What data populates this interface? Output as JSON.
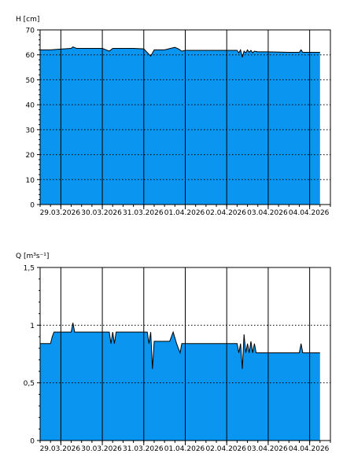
{
  "chart_data": [
    {
      "type": "area",
      "ylabel": "H [cm]",
      "ylim": [
        0,
        70
      ],
      "yticks": [
        0,
        10,
        20,
        30,
        40,
        50,
        60,
        70
      ],
      "ytick_labels": [
        "0",
        "10",
        "20",
        "30",
        "40",
        "50",
        "60",
        "70"
      ],
      "xlim": [
        "2026-03-28T12:00",
        "2026-04-04T12:00"
      ],
      "x_day_lines": [
        "2026-03-29",
        "2026-03-30",
        "2026-03-31",
        "2026-04-01",
        "2026-04-02",
        "2026-04-03",
        "2026-04-04"
      ],
      "xtick_labels": [
        "29.03.2026",
        "30.03.2026",
        "31.03.2026",
        "01.04.2026",
        "02.04.2026",
        "03.04.2026",
        "04.04.2026"
      ],
      "grid": "horizontal dotted",
      "fill_color": "#0a96f0",
      "series": [
        {
          "x": [
            "2026-03-28T12:00",
            "2026-03-28T18:00",
            "2026-03-29T00:00",
            "2026-03-29T06:00",
            "2026-03-29T07:00",
            "2026-03-29T09:00",
            "2026-03-29T12:00",
            "2026-03-29T18:00",
            "2026-03-30T00:00",
            "2026-03-30T04:00",
            "2026-03-30T06:00",
            "2026-03-30T08:00",
            "2026-03-30T12:00",
            "2026-03-30T18:00",
            "2026-03-31T00:00",
            "2026-03-31T04:00",
            "2026-03-31T06:00",
            "2026-03-31T08:00",
            "2026-03-31T12:00",
            "2026-03-31T18:00",
            "2026-03-31T20:00",
            "2026-03-31T22:00",
            "2026-04-01T00:00",
            "2026-04-01T12:00",
            "2026-04-02T00:00",
            "2026-04-02T06:00",
            "2026-04-02T07:00",
            "2026-04-02T08:00",
            "2026-04-02T09:00",
            "2026-04-02T10:00",
            "2026-04-02T11:00",
            "2026-04-02T12:00",
            "2026-04-02T13:00",
            "2026-04-02T14:00",
            "2026-04-02T15:00",
            "2026-04-02T16:00",
            "2026-04-02T18:00",
            "2026-04-03T00:00",
            "2026-04-03T12:00",
            "2026-04-03T18:00",
            "2026-04-03T19:00",
            "2026-04-03T20:00",
            "2026-04-04T00:00",
            "2026-04-04T06:00"
          ],
          "values": [
            62.0,
            62.0,
            62.3,
            62.6,
            63.2,
            62.6,
            62.6,
            62.6,
            62.6,
            61.5,
            62.6,
            62.6,
            62.6,
            62.6,
            62.4,
            59.5,
            62.0,
            62.0,
            62.0,
            63.0,
            62.4,
            61.5,
            61.8,
            61.8,
            61.8,
            61.8,
            60.8,
            62.0,
            59.0,
            61.5,
            60.8,
            62.0,
            61.0,
            61.8,
            60.8,
            61.5,
            61.2,
            61.2,
            61.0,
            61.0,
            62.0,
            61.0,
            61.0,
            61.0
          ]
        }
      ]
    },
    {
      "type": "area",
      "ylabel": "Q [m³s⁻¹]",
      "ylim": [
        0,
        1.5
      ],
      "yticks": [
        0,
        0.5,
        1,
        1.5
      ],
      "ytick_labels": [
        "0",
        "0,5",
        "1",
        "1,5"
      ],
      "xlim": [
        "2026-03-28T12:00",
        "2026-04-04T12:00"
      ],
      "x_day_lines": [
        "2026-03-29",
        "2026-03-30",
        "2026-03-31",
        "2026-04-01",
        "2026-04-02",
        "2026-04-03",
        "2026-04-04"
      ],
      "xtick_labels": [
        "29.03.2026",
        "30.03.2026",
        "31.03.2026",
        "01.04.2026",
        "02.04.2026",
        "03.04.2026",
        "04.04.2026"
      ],
      "grid": "horizontal dotted",
      "fill_color": "#0a96f0",
      "series": [
        {
          "x": [
            "2026-03-28T12:00",
            "2026-03-28T18:00",
            "2026-03-28T19:00",
            "2026-03-28T20:00",
            "2026-03-29T00:00",
            "2026-03-29T06:00",
            "2026-03-29T07:00",
            "2026-03-29T08:00",
            "2026-03-29T12:00",
            "2026-03-29T18:00",
            "2026-03-30T00:00",
            "2026-03-30T04:00",
            "2026-03-30T05:00",
            "2026-03-30T06:00",
            "2026-03-30T07:00",
            "2026-03-30T08:00",
            "2026-03-30T12:00",
            "2026-03-30T18:00",
            "2026-03-31T00:00",
            "2026-03-31T02:00",
            "2026-03-31T03:00",
            "2026-03-31T04:00",
            "2026-03-31T05:00",
            "2026-03-31T06:00",
            "2026-03-31T12:00",
            "2026-03-31T15:00",
            "2026-03-31T17:00",
            "2026-03-31T19:00",
            "2026-03-31T20:00",
            "2026-03-31T21:00",
            "2026-03-31T22:00",
            "2026-04-01T00:00",
            "2026-04-01T12:00",
            "2026-04-02T00:00",
            "2026-04-02T06:00",
            "2026-04-02T07:00",
            "2026-04-02T08:00",
            "2026-04-02T09:00",
            "2026-04-02T10:00",
            "2026-04-02T11:00",
            "2026-04-02T12:00",
            "2026-04-02T13:00",
            "2026-04-02T14:00",
            "2026-04-02T15:00",
            "2026-04-02T16:00",
            "2026-04-02T17:00",
            "2026-04-02T18:00",
            "2026-04-03T00:00",
            "2026-04-03T12:00",
            "2026-04-03T18:00",
            "2026-04-03T19:00",
            "2026-04-03T20:00",
            "2026-04-04T00:00",
            "2026-04-04T06:00"
          ],
          "values": [
            0.84,
            0.84,
            0.9,
            0.94,
            0.94,
            0.94,
            1.02,
            0.94,
            0.94,
            0.94,
            0.94,
            0.94,
            0.84,
            0.94,
            0.84,
            0.94,
            0.94,
            0.94,
            0.94,
            0.94,
            0.84,
            0.94,
            0.62,
            0.86,
            0.86,
            0.86,
            0.94,
            0.84,
            0.8,
            0.76,
            0.84,
            0.84,
            0.84,
            0.84,
            0.84,
            0.76,
            0.84,
            0.62,
            0.92,
            0.76,
            0.84,
            0.76,
            0.86,
            0.76,
            0.84,
            0.76,
            0.76,
            0.76,
            0.76,
            0.76,
            0.84,
            0.76,
            0.76,
            0.76
          ]
        }
      ]
    }
  ]
}
